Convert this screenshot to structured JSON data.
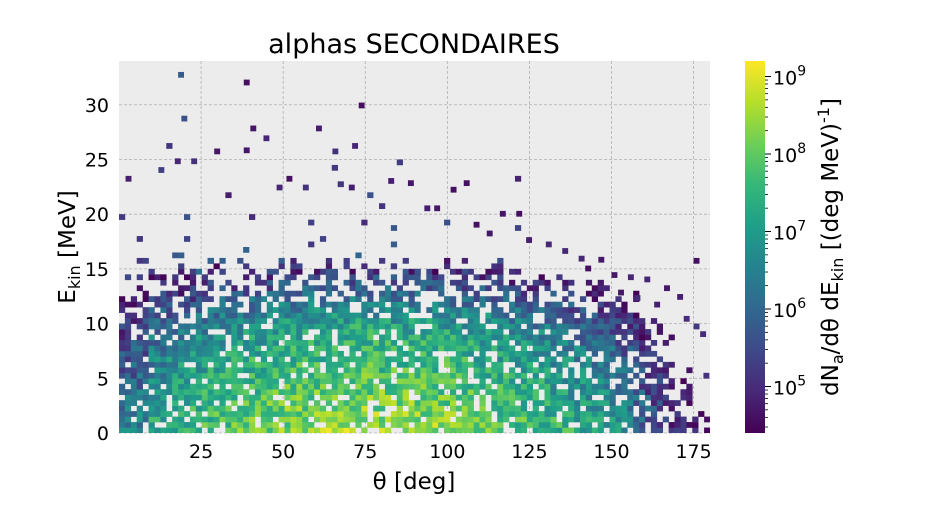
{
  "chart_data": {
    "type": "heatmap",
    "title": "alphas SECONDAIRES",
    "xlabel": {
      "main": "θ [deg]"
    },
    "ylabel": {
      "main": "E",
      "sub": "kin",
      "tail": " [MeV]"
    },
    "colorbar_label": {
      "p1": "dN",
      "s1": "a",
      "p2": "/dθ dE",
      "s2": "kin",
      "p3": "  [(deg MeV)",
      "sup": "-1",
      "p4": "]"
    },
    "xlim": [
      0,
      180
    ],
    "ylim": [
      0,
      34
    ],
    "xticks": [
      "25",
      "50",
      "75",
      "100",
      "125",
      "150",
      "175"
    ],
    "yticks": [
      "0",
      "5",
      "10",
      "15",
      "20",
      "25",
      "30"
    ],
    "colorbar": {
      "scale": "log",
      "min_exp": 4.4,
      "max_exp": 9.2,
      "tick_exps": [
        5,
        6,
        7,
        8,
        9
      ],
      "tick_base": "10",
      "colormap": "viridis",
      "colors": [
        "#440154",
        "#482878",
        "#3e4989",
        "#31688e",
        "#26828e",
        "#1f9e89",
        "#35b779",
        "#6ece58",
        "#b5de2b",
        "#fde725"
      ]
    },
    "grid": true,
    "bins": {
      "theta_width_deg": 1.8,
      "energy_width_mev": 0.5
    },
    "data_description": "2D histogram of secondary alphas; density highest (~1e8-1e9) below 10 MeV between 30 and 130 deg, decreasing with energy; sparse counts up to ~32 MeV",
    "sparse_points": [
      [
        18,
        32.5,
        5.8
      ],
      [
        38,
        31.8,
        4.6
      ],
      [
        73,
        29.7,
        4.6
      ],
      [
        19,
        28.5,
        5.6
      ],
      [
        40,
        27.6,
        4.7
      ],
      [
        60,
        27.6,
        4.8
      ],
      [
        44,
        26.7,
        4.9
      ],
      [
        71,
        26.0,
        4.9
      ],
      [
        29,
        25.5,
        4.7
      ],
      [
        38,
        25.6,
        4.7
      ],
      [
        65,
        25.5,
        5.1
      ],
      [
        17,
        24.6,
        4.9
      ],
      [
        22,
        24.6,
        5.1
      ],
      [
        12,
        23.8,
        5.3
      ],
      [
        2,
        23.0,
        4.8
      ],
      [
        51,
        23.0,
        4.6
      ],
      [
        48,
        22.2,
        4.9
      ],
      [
        56,
        22.2,
        5.1
      ],
      [
        70,
        22.2,
        4.8
      ],
      [
        82,
        22.8,
        4.8
      ],
      [
        88,
        22.6,
        4.7
      ],
      [
        101,
        22.0,
        4.6
      ],
      [
        105,
        22.6,
        4.6
      ],
      [
        93,
        20.3,
        4.8
      ],
      [
        96,
        20.3,
        4.7
      ],
      [
        116,
        19.8,
        4.7
      ],
      [
        121,
        19.8,
        4.6
      ],
      [
        108,
        18.8,
        4.6
      ],
      [
        112,
        18.0,
        4.7
      ],
      [
        124,
        17.4,
        4.8
      ],
      [
        130,
        17.0,
        4.9
      ],
      [
        135,
        16.4,
        4.9
      ],
      [
        140,
        15.7,
        4.9
      ],
      [
        142,
        14.8,
        4.6
      ],
      [
        146,
        15.6,
        4.7
      ],
      [
        150,
        14.2,
        4.7
      ],
      [
        155,
        14.0,
        4.9
      ],
      [
        160,
        13.8,
        4.9
      ],
      [
        166,
        13.0,
        4.7
      ],
      [
        175,
        15.5,
        4.6
      ],
      [
        170,
        12.2,
        4.8
      ],
      [
        163,
        11.5,
        4.8
      ],
      [
        157,
        12.1,
        5.0
      ],
      [
        152,
        12.6,
        4.7
      ],
      [
        172,
        10.2,
        5.0
      ],
      [
        175,
        9.5,
        5.2
      ],
      [
        177,
        8.8,
        5.0
      ],
      [
        178,
        5.0,
        5.1
      ]
    ]
  }
}
